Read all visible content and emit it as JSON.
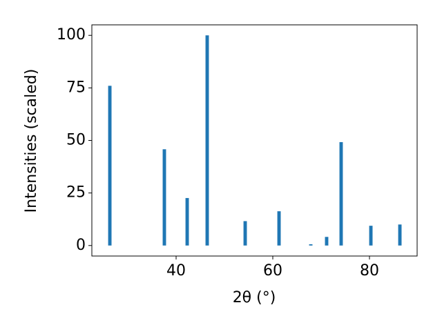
{
  "chart_data": {
    "type": "bar",
    "x": [
      26.29,
      37.57,
      42.29,
      46.43,
      54.29,
      61.29,
      67.86,
      71.14,
      74.14,
      80.29,
      86.29
    ],
    "values": [
      76,
      45.8,
      22.6,
      100,
      11.6,
      16.3,
      0.6,
      4.1,
      49.2,
      9.4,
      10.0
    ],
    "color": "#1f77b4",
    "xlabel": "2θ (°)",
    "ylabel": "Intensities (scaled)",
    "xlim": [
      22.57,
      89.86
    ],
    "xticks": [
      40,
      60,
      80
    ],
    "ylim": [
      -5,
      105
    ],
    "yticks": [
      0,
      25,
      50,
      75,
      100
    ],
    "grid": false
  }
}
